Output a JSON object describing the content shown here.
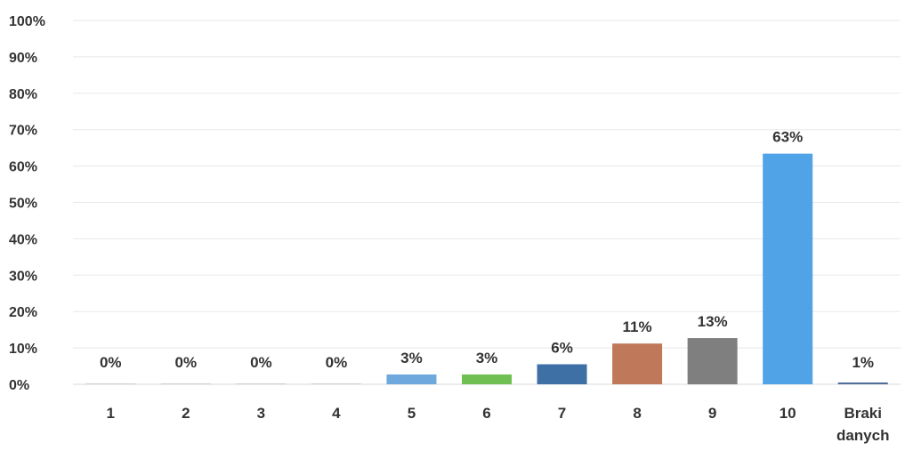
{
  "chart_data": {
    "type": "bar",
    "categories": [
      "1",
      "2",
      "3",
      "4",
      "5",
      "6",
      "7",
      "8",
      "9",
      "10",
      "Braki danych"
    ],
    "values": [
      0,
      0,
      0,
      0,
      3,
      3,
      6,
      11,
      13,
      63,
      1
    ],
    "data_labels": [
      "0%",
      "0%",
      "0%",
      "0%",
      "3%",
      "3%",
      "6%",
      "11%",
      "13%",
      "63%",
      "1%"
    ],
    "bar_values": [
      0,
      0,
      0,
      0,
      2.7,
      2.7,
      5.5,
      11.2,
      12.7,
      63.4,
      0.5
    ],
    "colors": [
      "#4f81bd",
      "#4f81bd",
      "#4f81bd",
      "#4f81bd",
      "#6fa8dc",
      "#70bf52",
      "#3e6fa5",
      "#c0785a",
      "#7f7f7f",
      "#4fa3e6",
      "#4f6d99"
    ],
    "ylim": [
      0,
      100
    ],
    "yticks": [
      "0%",
      "10%",
      "20%",
      "30%",
      "40%",
      "50%",
      "60%",
      "70%",
      "80%",
      "90%",
      "100%"
    ],
    "grid": true
  }
}
